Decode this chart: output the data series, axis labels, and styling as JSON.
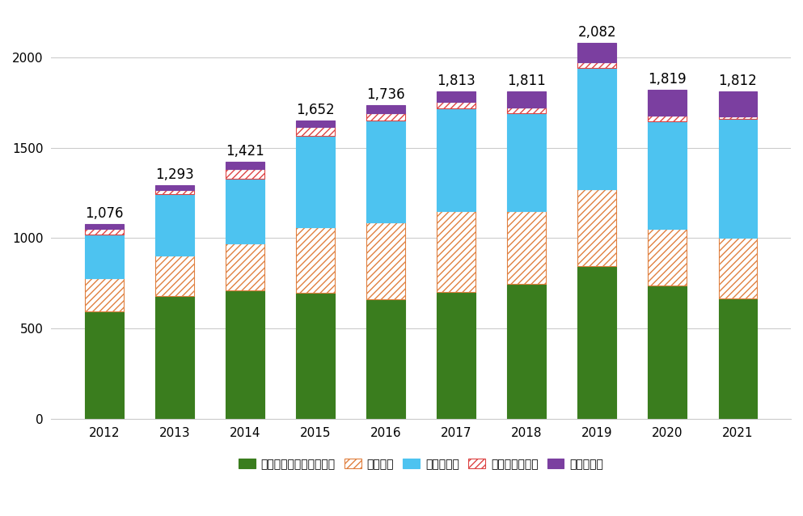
{
  "years": [
    2012,
    2013,
    2014,
    2015,
    2016,
    2017,
    2018,
    2019,
    2020,
    2021
  ],
  "categories": [
    "青少年保護育成条例違反",
    "児童買春",
    "児童ポルノ",
    "児童福祉法違反",
    "重要犯罪等"
  ],
  "values": {
    "青少年保護育成条例違反": [
      596,
      678,
      711,
      699,
      662,
      702,
      749,
      844,
      738,
      665
    ],
    "児童買春": [
      182,
      226,
      260,
      359,
      425,
      447,
      399,
      428,
      311,
      336
    ],
    "児童ポルノ": [
      242,
      341,
      358,
      507,
      563,
      570,
      545,
      671,
      597,
      657
    ],
    "児童福祉法違反": [
      32,
      22,
      54,
      48,
      43,
      33,
      27,
      28,
      31,
      13
    ],
    "重要犯罪等": [
      24,
      26,
      38,
      39,
      43,
      61,
      91,
      111,
      142,
      141
    ]
  },
  "totals": [
    1076,
    1293,
    1421,
    1652,
    1736,
    1813,
    1811,
    2082,
    1819,
    1812
  ],
  "colors": {
    "青少年保護育成条例違反": "#3a7d1e",
    "児童買春": "#ffffff",
    "児童ポルノ": "#4dc3f0",
    "児童福祉法違反": "#ffffff",
    "重要犯罪等": "#7b3fa0"
  },
  "hatches": {
    "青少年保護育成条例違反": "",
    "児童買春": "////",
    "児童ポルノ": "",
    "児童福祉法違反": "////",
    "重要犯罪等": ""
  },
  "hatch_colors": {
    "青少年保護育成条例違反": "#3a7d1e",
    "児童買春": "#e08040",
    "児童ポルノ": "#4dc3f0",
    "児童福祉法違反": "#dd4444",
    "重要犯罪等": "#7b3fa0"
  },
  "ylim": [
    0,
    2250
  ],
  "yticks": [
    0,
    500,
    1000,
    1500,
    2000
  ],
  "background_color": "#ffffff",
  "bar_width": 0.55,
  "total_fontsize": 12,
  "legend_fontsize": 10,
  "tick_fontsize": 11
}
